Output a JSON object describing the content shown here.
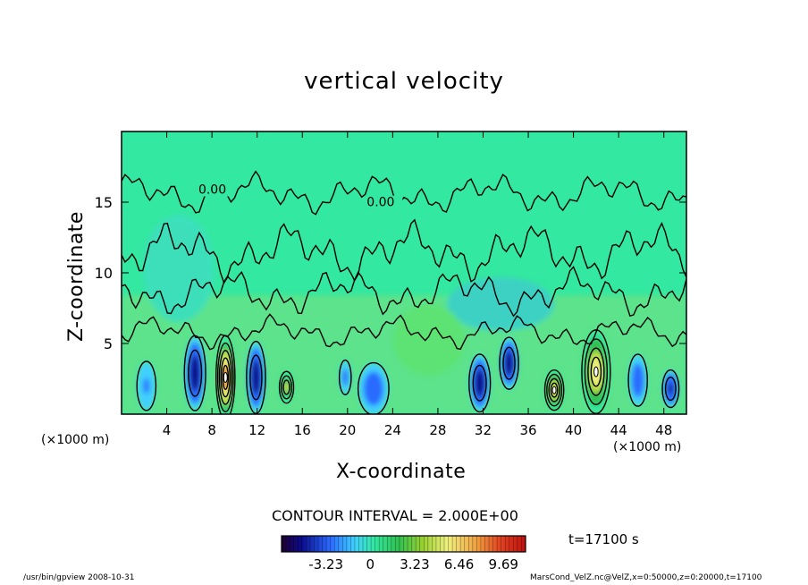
{
  "title": "vertical velocity",
  "x_unit_left": "(×1000 m)",
  "x_unit_right": "(×1000 m)",
  "contour_interval": "CONTOUR INTERVAL = 2.000E+00",
  "time_label": "t=17100 s",
  "footer_left": "/usr/bin/gpview   2008-10-31",
  "footer_right": "MarsCond_VelZ.nc@VelZ,x=0:50000,z=0:20000,t=17100",
  "colors": {
    "background_field": "#33e8a0",
    "frame": "#000000"
  },
  "chart_data": {
    "type": "heatmap",
    "title": "vertical velocity",
    "xlabel": "X-coordinate",
    "ylabel": "Z-coordinate",
    "xlim": [
      0,
      50
    ],
    "ylim": [
      0,
      20
    ],
    "x_ticks": [
      4,
      8,
      12,
      16,
      20,
      24,
      28,
      32,
      36,
      40,
      44,
      48
    ],
    "y_ticks": [
      5,
      10,
      15
    ],
    "contour_labels": [
      {
        "text": "0.00",
        "x": 6.8,
        "z": 15.6
      },
      {
        "text": "0.00",
        "x": 21.7,
        "z": 14.7
      }
    ],
    "colorbar": {
      "tick_labels": [
        "-3.23",
        "0",
        "3.23",
        "6.46",
        "9.69"
      ],
      "tick_values": [
        -3.23,
        0,
        3.23,
        6.46,
        9.69
      ],
      "range": [
        -6.46,
        11.3
      ]
    },
    "features": [
      {
        "kind": "down",
        "x": 2.2,
        "z": 2.0,
        "rx": 0.8,
        "rz": 1.7,
        "v": -1.5
      },
      {
        "kind": "down",
        "x": 6.5,
        "z": 2.9,
        "rx": 0.9,
        "rz": 2.6,
        "v": -4.5
      },
      {
        "kind": "up",
        "x": 9.2,
        "z": 2.6,
        "rx": 0.8,
        "rz": 2.9,
        "v": 10.0
      },
      {
        "kind": "down",
        "x": 11.9,
        "z": 2.6,
        "rx": 0.8,
        "rz": 2.5,
        "v": -4.5
      },
      {
        "kind": "up",
        "x": 14.6,
        "z": 1.9,
        "rx": 0.6,
        "rz": 1.1,
        "v": 5.0
      },
      {
        "kind": "down",
        "x": 19.8,
        "z": 2.6,
        "rx": 0.5,
        "rz": 1.2,
        "v": -2.0
      },
      {
        "kind": "down",
        "x": 22.3,
        "z": 1.8,
        "rx": 1.3,
        "rz": 1.8,
        "v": -2.5
      },
      {
        "kind": "down",
        "x": 31.7,
        "z": 2.2,
        "rx": 0.9,
        "rz": 2.0,
        "v": -4.0
      },
      {
        "kind": "down",
        "x": 34.3,
        "z": 3.6,
        "rx": 0.8,
        "rz": 1.8,
        "v": -4.5
      },
      {
        "kind": "up",
        "x": 38.3,
        "z": 1.7,
        "rx": 0.8,
        "rz": 1.4,
        "v": 7.0
      },
      {
        "kind": "up",
        "x": 42.0,
        "z": 3.0,
        "rx": 1.2,
        "rz": 2.9,
        "v": 7.5
      },
      {
        "kind": "down",
        "x": 45.7,
        "z": 2.4,
        "rx": 0.8,
        "rz": 1.8,
        "v": -2.5
      },
      {
        "kind": "down",
        "x": 48.6,
        "z": 1.8,
        "rx": 0.7,
        "rz": 1.3,
        "v": -3.5
      }
    ]
  }
}
